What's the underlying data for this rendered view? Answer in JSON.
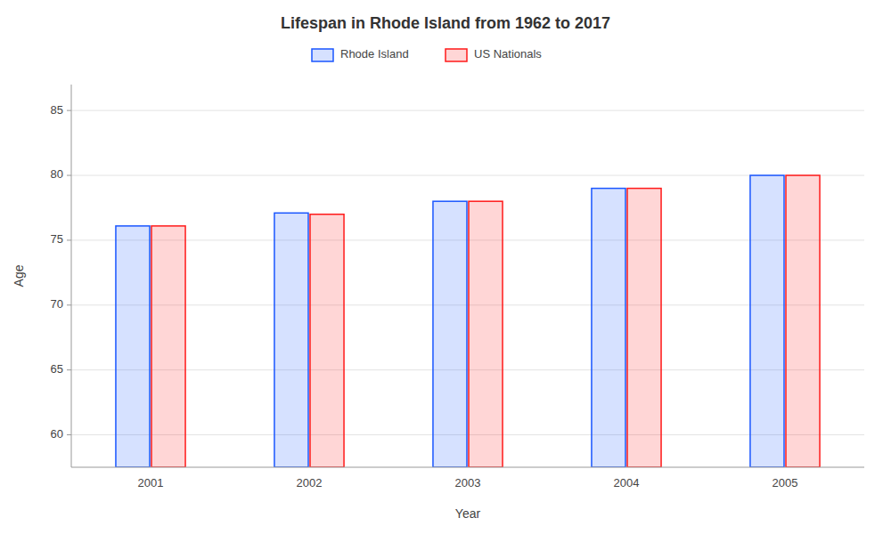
{
  "chart_data": {
    "type": "bar",
    "title": "Lifespan in Rhode Island from 1962 to 2017",
    "x_label": "Year",
    "y_label": "Age",
    "categories": [
      "2001",
      "2002",
      "2003",
      "2004",
      "2005"
    ],
    "series": [
      {
        "name": "Rhode Island",
        "color": "#1a56ff",
        "values": [
          76.1,
          77.1,
          78.0,
          79.0,
          80.0
        ]
      },
      {
        "name": "US Nationals",
        "color": "#ff1a1a",
        "values": [
          76.1,
          77.0,
          78.0,
          79.0,
          80.0
        ]
      }
    ],
    "ylim": [
      57.5,
      87
    ],
    "yticks": [
      60,
      65,
      70,
      75,
      80,
      85
    ],
    "grid": true,
    "legend": "top"
  }
}
